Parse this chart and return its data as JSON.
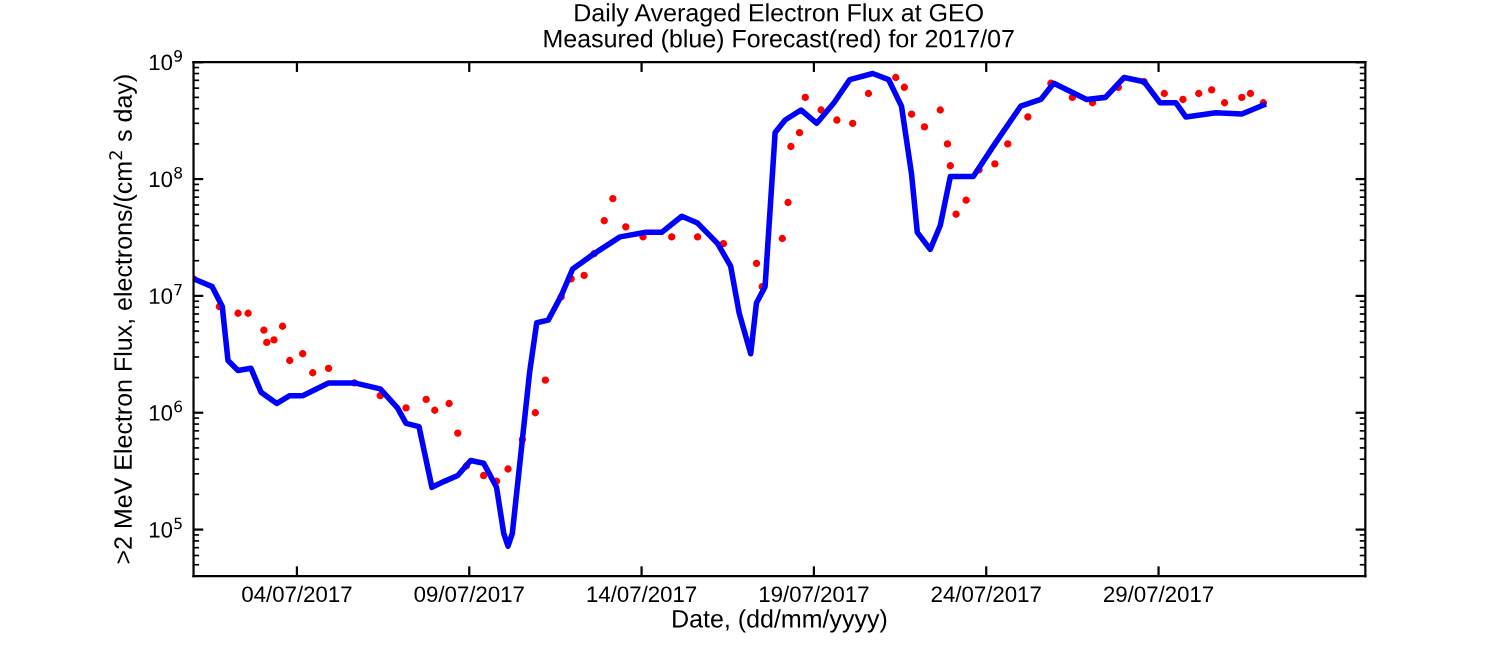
{
  "chart_data": {
    "type": "line",
    "title": "Daily Averaged Electron Flux at GEO",
    "subtitle": "Measured (blue) Forecast(red) for 2017/07",
    "xlabel": "Date, (dd/mm/yyyy)",
    "ylabel": ">2 MeV Electron Flux, electrons/(cm$^{2}$ s day)",
    "log": "y",
    "grid": false,
    "legend": false,
    "xlim": [
      "2017-07-01",
      "2017-08-04"
    ],
    "xticks": [
      {
        "value": "2017-07-04",
        "label": "04/07/2017"
      },
      {
        "value": "2017-07-09",
        "label": "09/07/2017"
      },
      {
        "value": "2017-07-14",
        "label": "14/07/2017"
      },
      {
        "value": "2017-07-19",
        "label": "19/07/2017"
      },
      {
        "value": "2017-07-24",
        "label": "24/07/2017"
      },
      {
        "value": "2017-07-29",
        "label": "29/07/2017"
      }
    ],
    "ylim": [
      40000,
      1000000000
    ],
    "yticks": [
      {
        "value": 100000,
        "label": "10$^{5}$"
      },
      {
        "value": 1000000,
        "label": "10$^{6}$"
      },
      {
        "value": 10000000,
        "label": "10$^{7}$"
      },
      {
        "value": 100000000,
        "label": "10$^{8}$"
      },
      {
        "value": 1000000000,
        "label": "10$^{9}$"
      }
    ],
    "series": [
      {
        "type": "line",
        "color": "#0000ff",
        "line_style": "solid",
        "marker": "none",
        "x": [
          "2017-07-01T00:00",
          "2017-07-01T13:00",
          "2017-07-01T20:00",
          "2017-07-02T00:00",
          "2017-07-02T07:00",
          "2017-07-02T16:00",
          "2017-07-02T23:00",
          "2017-07-03T10:00",
          "2017-07-03T19:00",
          "2017-07-04T04:00",
          "2017-07-04T22:00",
          "2017-07-05T16:00",
          "2017-07-06T10:00",
          "2017-07-06T22:00",
          "2017-07-07T04:00",
          "2017-07-07T13:00",
          "2017-07-07T22:00",
          "2017-07-08T07:00",
          "2017-07-08T16:00",
          "2017-07-09T01:00",
          "2017-07-09T10:00",
          "2017-07-09T19:00",
          "2017-07-10T00:00",
          "2017-07-10T03:00",
          "2017-07-10T06:00",
          "2017-07-10T13:00",
          "2017-07-10T18:00",
          "2017-07-10T23:00",
          "2017-07-11T07:00",
          "2017-07-11T16:00",
          "2017-07-12T00:00",
          "2017-07-12T15:00",
          "2017-07-13T09:00",
          "2017-07-14T03:00",
          "2017-07-14T14:00",
          "2017-07-15T04:00",
          "2017-07-15T15:00",
          "2017-07-16T05:00",
          "2017-07-16T14:00",
          "2017-07-16T20:00",
          "2017-07-17T04:00",
          "2017-07-17T08:00",
          "2017-07-17T14:00",
          "2017-07-17T21:00",
          "2017-07-18T04:00",
          "2017-07-18T15:00",
          "2017-07-19T02:00",
          "2017-07-19T14:00",
          "2017-07-20T01:00",
          "2017-07-20T17:00",
          "2017-07-21T04:00",
          "2017-07-21T13:00",
          "2017-07-21T20:00",
          "2017-07-22T00:00",
          "2017-07-22T09:00",
          "2017-07-22T16:00",
          "2017-07-22T23:00",
          "2017-07-23T15:00",
          "2017-07-24T06:00",
          "2017-07-25T00:00",
          "2017-07-25T14:00",
          "2017-07-25T23:00",
          "2017-07-26T22:00",
          "2017-07-27T11:00",
          "2017-07-28T00:00",
          "2017-07-28T14:00",
          "2017-07-29T01:00",
          "2017-07-29T12:00",
          "2017-07-29T19:00",
          "2017-07-30T16:00",
          "2017-07-31T10:00",
          "2017-08-01T01:00"
        ],
        "values": [
          14000000,
          12000000,
          8100000,
          2800000,
          2300000,
          2400000,
          1500000,
          1200000,
          1400000,
          1400000,
          1800000,
          1800000,
          1600000,
          1100000,
          810000,
          760000,
          230000,
          260000,
          290000,
          390000,
          370000,
          230000,
          93000,
          72000,
          93000,
          590000,
          2200000,
          5900000,
          6200000,
          10000000,
          17000000,
          23000000,
          32000000,
          35000000,
          35000000,
          48000000,
          42000000,
          28000000,
          18000000,
          7100000,
          3200000,
          8700000,
          12000000,
          250000000,
          320000000,
          390000000,
          300000000,
          450000000,
          710000000,
          800000000,
          710000000,
          420000000,
          110000000,
          35000000,
          25000000,
          40000000,
          105000000,
          105000000,
          200000000,
          420000000,
          480000000,
          660000000,
          480000000,
          500000000,
          740000000,
          680000000,
          450000000,
          450000000,
          340000000,
          370000000,
          360000000,
          430000000
        ]
      },
      {
        "type": "scatter",
        "color": "#ff0000",
        "marker": "circle",
        "x": [
          "2017-07-01T00:00",
          "2017-07-01T18:00",
          "2017-07-02T07:00",
          "2017-07-02T14:00",
          "2017-07-03T01:00",
          "2017-07-03T03:00",
          "2017-07-03T08:00",
          "2017-07-03T14:00",
          "2017-07-03T19:00",
          "2017-07-04T04:00",
          "2017-07-04T11:00",
          "2017-07-04T22:00",
          "2017-07-05T16:00",
          "2017-07-06T10:00",
          "2017-07-07T04:00",
          "2017-07-07T18:00",
          "2017-07-08T00:00",
          "2017-07-08T10:00",
          "2017-07-08T16:00",
          "2017-07-08T22:00",
          "2017-07-09T10:00",
          "2017-07-09T19:00",
          "2017-07-10T03:00",
          "2017-07-10T13:00",
          "2017-07-10T22:00",
          "2017-07-11T05:00",
          "2017-07-11T16:00",
          "2017-07-11T23:00",
          "2017-07-12T08:00",
          "2017-07-12T15:00",
          "2017-07-12T22:00",
          "2017-07-13T04:00",
          "2017-07-13T13:00",
          "2017-07-14T01:00",
          "2017-07-14T21:00",
          "2017-07-15T15:00",
          "2017-07-16T09:00",
          "2017-07-17T08:00",
          "2017-07-17T12:00",
          "2017-07-18T02:00",
          "2017-07-18T06:00",
          "2017-07-18T08:00",
          "2017-07-18T14:00",
          "2017-07-18T18:00",
          "2017-07-19T05:00",
          "2017-07-19T16:00",
          "2017-07-20T03:00",
          "2017-07-20T14:00",
          "2017-07-21T09:00",
          "2017-07-21T15:00",
          "2017-07-21T20:00",
          "2017-07-22T05:00",
          "2017-07-22T16:00",
          "2017-07-22T21:00",
          "2017-07-22T23:00",
          "2017-07-23T03:00",
          "2017-07-23T10:00",
          "2017-07-23T19:00",
          "2017-07-24T06:00",
          "2017-07-24T15:00",
          "2017-07-25T05:00",
          "2017-07-25T21:00",
          "2017-07-26T12:00",
          "2017-07-27T02:00",
          "2017-07-27T20:00",
          "2017-07-28T14:00",
          "2017-07-29T04:00",
          "2017-07-29T17:00",
          "2017-07-30T04:00",
          "2017-07-30T13:00",
          "2017-07-30T22:00",
          "2017-07-31T10:00",
          "2017-07-31T16:00",
          "2017-08-01T01:00"
        ],
        "values": [
          14000000,
          8100000,
          7100000,
          7100000,
          5100000,
          4000000,
          4200000,
          5500000,
          2800000,
          3200000,
          2200000,
          2400000,
          1800000,
          1400000,
          1100000,
          1300000,
          1050000,
          1200000,
          670000,
          350000,
          290000,
          260000,
          330000,
          590000,
          1000000,
          1900000,
          9800000,
          14000000,
          15000000,
          23000000,
          44000000,
          68000000,
          39000000,
          32000000,
          32000000,
          32000000,
          28000000,
          19000000,
          12000000,
          31000000,
          63000000,
          190000000,
          250000000,
          500000000,
          390000000,
          320000000,
          300000000,
          540000000,
          740000000,
          610000000,
          360000000,
          280000000,
          390000000,
          200000000,
          130000000,
          50000000,
          66000000,
          120000000,
          135000000,
          200000000,
          340000000,
          660000000,
          500000000,
          450000000,
          610000000,
          680000000,
          540000000,
          480000000,
          540000000,
          580000000,
          450000000,
          500000000,
          540000000,
          450000000
        ]
      }
    ]
  }
}
